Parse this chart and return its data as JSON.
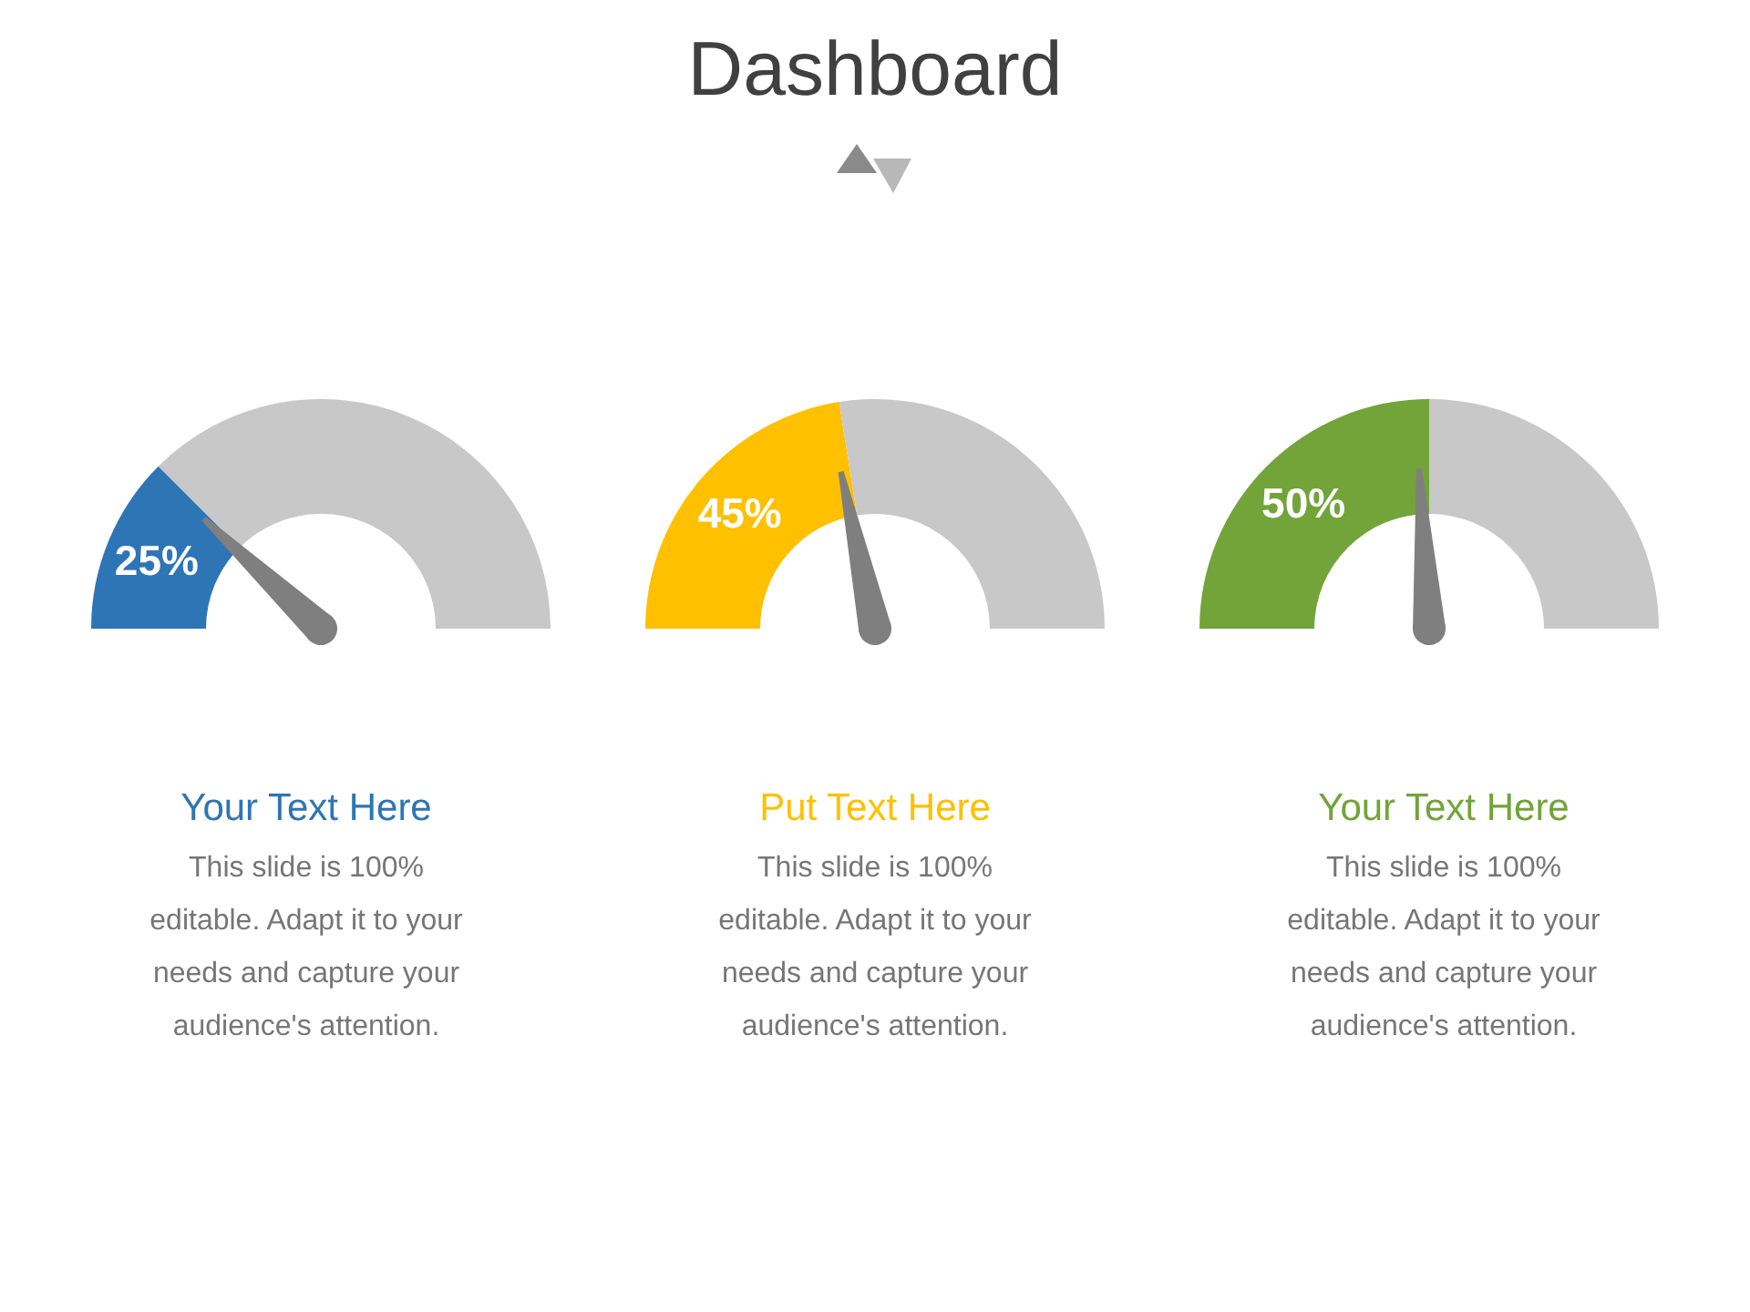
{
  "chart_data": [
    {
      "type": "other",
      "title": "Dashboard"
    },
    {
      "type": "donut",
      "title": "Your Text Here",
      "categories": [
        null,
        null
      ],
      "values": [
        25,
        75
      ],
      "colors": [
        "#2e75b6",
        "#c8c8c8"
      ],
      "value_labels": [
        "25%",
        null
      ],
      "needle": null,
      "annotations": [
        "This slide is 100% editable. Adapt it to your needs and capture your audience's attention."
      ]
    },
    {
      "type": "donut",
      "title": "Put Text Here",
      "categories": [
        null,
        null
      ],
      "values": [
        45,
        55
      ],
      "colors": [
        "#ffc000",
        "#c8c8c8"
      ],
      "value_labels": [
        "45%",
        null
      ],
      "needle": null,
      "annotations": [
        "This slide is 100% editable. Adapt it to your needs and capture your audience's attention."
      ]
    },
    {
      "type": "donut",
      "title": "Your Text Here",
      "categories": [
        null,
        null
      ],
      "values": [
        50,
        50
      ],
      "colors": [
        "#72a43a",
        "#c8c8c8"
      ],
      "value_labels": [
        "50%",
        null
      ],
      "needle": null,
      "annotations": [
        "This slide is 100% editable. Adapt it to your needs and capture your audience's attention."
      ]
    }
  ]
}
